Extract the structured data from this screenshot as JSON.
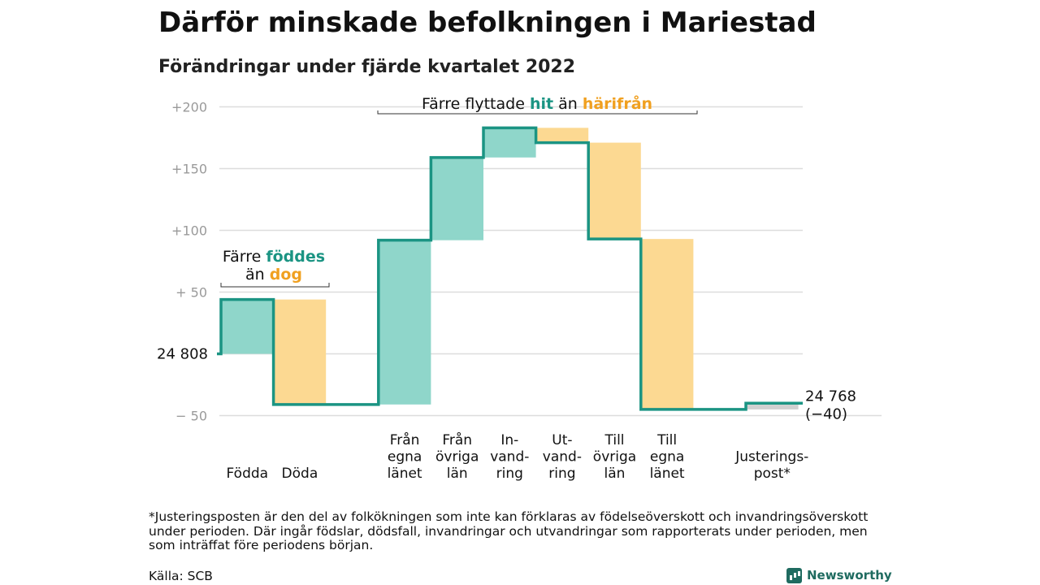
{
  "title": "Därför minskade befolkningen i Mariestad",
  "subtitle": "Förändringar under fjärde kvartalet 2022",
  "colors": {
    "in": "#8fd6ca",
    "out": "#fcd992",
    "line": "#1b9483",
    "in_text": "#1b9483",
    "out_text": "#f0a020",
    "grid": "#dddddd",
    "tick": "#9a9a9a",
    "adjust": "#d0d0d0"
  },
  "chart_data": {
    "type": "bar",
    "base_label": "24 808",
    "end_label": [
      "24 768",
      "(−40)"
    ],
    "y_ticks": [
      {
        "value": 200,
        "label": "+200"
      },
      {
        "value": 150,
        "label": "+150"
      },
      {
        "value": 100,
        "label": "+100"
      },
      {
        "value": 50,
        "label": "+ 50"
      },
      {
        "value": 0,
        "label": ""
      },
      {
        "value": -50,
        "label": "− 50"
      }
    ],
    "ylim": [
      -55,
      205
    ],
    "categories": [
      {
        "label": [
          "Födda"
        ],
        "change": 44,
        "kind": "in"
      },
      {
        "label": [
          "Döda"
        ],
        "change": -85,
        "kind": "out"
      },
      {
        "label": [],
        "change": 0,
        "kind": "none"
      },
      {
        "label": [
          "Från",
          "egna",
          "länet"
        ],
        "change": 133,
        "kind": "in"
      },
      {
        "label": [
          "Från",
          "övriga",
          "län"
        ],
        "change": 67,
        "kind": "in"
      },
      {
        "label": [
          "In-",
          "vand-",
          "ring"
        ],
        "change": 24,
        "kind": "in"
      },
      {
        "label": [
          "Ut-",
          "vand-",
          "ring"
        ],
        "change": -12,
        "kind": "out"
      },
      {
        "label": [
          "Till",
          "övriga",
          "län"
        ],
        "change": -78,
        "kind": "out"
      },
      {
        "label": [
          "Till",
          "egna",
          "länet"
        ],
        "change": -138,
        "kind": "out"
      },
      {
        "label": [],
        "change": 0,
        "kind": "none"
      },
      {
        "label": [
          "Justerings-",
          "post*"
        ],
        "change": 5,
        "kind": "adjust"
      }
    ],
    "annotations": {
      "births": {
        "line1_prefix": "Färre ",
        "line1_em": "föddes",
        "line2_prefix": "än ",
        "line2_em": "dog"
      },
      "moves": {
        "prefix": "Färre flyttade ",
        "em_in": "hit",
        "middle": " än ",
        "em_out": "härifrån"
      }
    }
  },
  "footnote": "*Justeringsposten är den del av folkökningen som inte kan förklaras av födelseöverskott och invandringsöverskott under perioden. Där ingår födslar, dödsfall, invandringar och utvandringar som rapporterats under perioden, men som inträffat före periodens början.",
  "source": "Källa: SCB",
  "brand": "Newsworthy"
}
